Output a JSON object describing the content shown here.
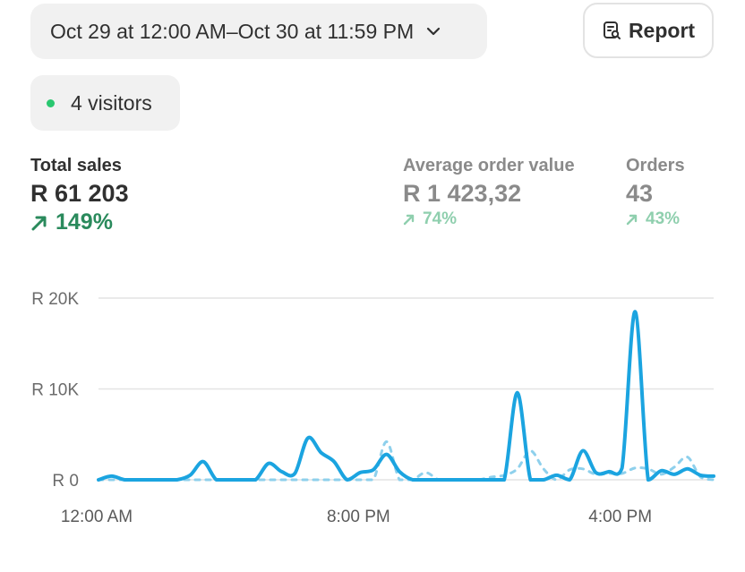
{
  "header": {
    "date_range": "Oct 29 at 12:00 AM–Oct 30 at 11:59 PM",
    "report_label": "Report"
  },
  "visitors": {
    "label": "4 visitors",
    "dot_color": "#29c76f"
  },
  "metrics": [
    {
      "label": "Total sales",
      "value": "R 61 203",
      "change": "149%",
      "direction": "up"
    },
    {
      "label": "Average order value",
      "value": "R 1 423,32",
      "change": "74%",
      "direction": "up"
    },
    {
      "label": "Orders",
      "value": "43",
      "change": "43%",
      "direction": "up"
    }
  ],
  "colors": {
    "accent_line": "#1ba4e0",
    "comparison_line": "#8ed0ec",
    "positive": "#2a8a5c",
    "positive_muted": "#8fcfae"
  },
  "chart_data": {
    "type": "line",
    "y_ticks": [
      "R 20K",
      "R 10K",
      "R 0"
    ],
    "x_tick_labels": [
      "12:00 AM",
      "8:00 PM",
      "4:00 PM"
    ],
    "x_tick_hours": [
      0,
      20,
      40
    ],
    "ylim": [
      0,
      20000
    ],
    "xlim": [
      0,
      47
    ],
    "grid": true,
    "series": [
      {
        "style": "solid",
        "x": [
          0,
          1,
          2,
          3,
          4,
          5,
          6,
          7,
          8,
          9,
          10,
          11,
          12,
          13,
          14,
          15,
          16,
          17,
          18,
          19,
          20,
          21,
          22,
          23,
          24,
          25,
          26,
          27,
          28,
          29,
          30,
          31,
          32,
          33,
          34,
          35,
          36,
          37,
          38,
          39,
          40,
          41,
          42,
          43,
          44,
          45,
          46,
          47
        ],
        "values": [
          0,
          400,
          0,
          0,
          0,
          0,
          0,
          500,
          2000,
          0,
          0,
          0,
          0,
          1800,
          900,
          700,
          4600,
          3000,
          2000,
          0,
          800,
          1100,
          2800,
          900,
          0,
          0,
          0,
          0,
          0,
          0,
          0,
          0,
          9600,
          0,
          0,
          500,
          0,
          3200,
          800,
          900,
          1300,
          18500,
          0,
          1000,
          600,
          1200,
          500,
          400
        ]
      },
      {
        "style": "dashed",
        "x": [
          0,
          1,
          2,
          3,
          4,
          5,
          6,
          7,
          8,
          9,
          10,
          11,
          12,
          13,
          14,
          15,
          16,
          17,
          18,
          19,
          20,
          21,
          22,
          23,
          24,
          25,
          26,
          27,
          28,
          29,
          30,
          31,
          32,
          33,
          34,
          35,
          36,
          37,
          38,
          39,
          40,
          41,
          42,
          43,
          44,
          45,
          46,
          47
        ],
        "values": [
          0,
          0,
          0,
          0,
          0,
          0,
          0,
          0,
          0,
          0,
          0,
          0,
          0,
          0,
          0,
          0,
          0,
          0,
          0,
          0,
          0,
          0,
          4200,
          0,
          0,
          800,
          0,
          0,
          0,
          0,
          300,
          500,
          1200,
          3200,
          1200,
          0,
          1100,
          1200,
          600,
          700,
          700,
          1300,
          1200,
          600,
          1400,
          2500,
          300,
          0
        ]
      }
    ]
  }
}
